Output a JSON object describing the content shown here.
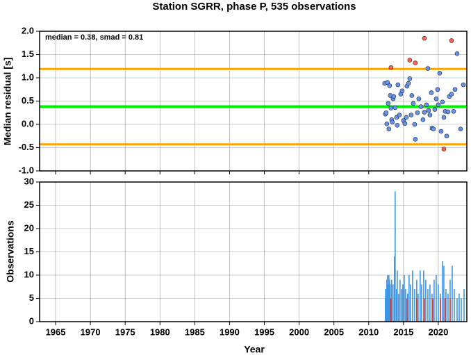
{
  "chart_data": [
    {
      "type": "scatter",
      "title": "Station SGRR, phase P, 535 observations",
      "y_label": "Median residual [s]",
      "annotation": "median = 0.38, smad = 0.81",
      "xlim": [
        1962.7,
        2024.1
      ],
      "xticks": [
        1965,
        1970,
        1975,
        1980,
        1985,
        1990,
        1995,
        2000,
        2005,
        2010,
        2015,
        2020
      ],
      "ylim": [
        -1,
        2
      ],
      "yticks": [
        {
          "value": 2,
          "label": "2.0"
        },
        {
          "value": 1.5,
          "label": "1.5"
        },
        {
          "value": 1,
          "label": "1.0"
        },
        {
          "value": 0.5,
          "label": "0.5"
        },
        {
          "value": 0,
          "label": "0.0"
        },
        {
          "value": -0.5,
          "label": "-0.5"
        },
        {
          "value": -1,
          "label": "-1.0"
        }
      ],
      "grid": true,
      "reference_lines": [
        {
          "value": 1.19,
          "color": "#ffa500"
        },
        {
          "value": 0.38,
          "color": "#00ee00"
        },
        {
          "value": -0.43,
          "color": "#ffa500"
        }
      ],
      "series": [
        {
          "color": "#6495ed",
          "x": [
            2012.3,
            2012.4,
            2012.5,
            2012.6,
            2012.7,
            2012.8,
            2012.9,
            2013.0,
            2013.1,
            2013.2,
            2013.3,
            2013.4,
            2013.5,
            2013.6,
            2013.8,
            2014.0,
            2014.1,
            2014.2,
            2014.4,
            2014.6,
            2014.8,
            2015.0,
            2015.2,
            2015.4,
            2015.5,
            2015.7,
            2015.9,
            2016.1,
            2016.2,
            2016.4,
            2016.6,
            2016.7,
            2017.0,
            2017.2,
            2017.5,
            2017.8,
            2018.0,
            2018.3,
            2018.5,
            2018.6,
            2018.8,
            2019.0,
            2019.1,
            2019.3,
            2019.5,
            2019.7,
            2019.9,
            2020.0,
            2020.2,
            2020.4,
            2020.6,
            2020.8,
            2021.0,
            2021.2,
            2021.4,
            2021.6,
            2021.9,
            2022.2,
            2022.4,
            2022.7,
            2023.2,
            2023.6
          ],
          "values": [
            0.88,
            0.22,
            0.25,
            0.01,
            0.9,
            0.45,
            -0.1,
            0.83,
            0.62,
            0.35,
            0.1,
            0.05,
            0.55,
            0.6,
            0.36,
            0.15,
            -0.02,
            0.85,
            0.2,
            0.65,
            0.72,
            0.08,
            0.02,
            0.15,
            0.82,
            0.88,
            0.98,
            0.2,
            0.62,
            0.45,
            0.0,
            -0.32,
            0.25,
            0.55,
            0.38,
            0.1,
            0.26,
            0.42,
            1.2,
            0.3,
            0.2,
            0.68,
            -0.08,
            -0.1,
            0.32,
            0.55,
            0.75,
            0.42,
            1.1,
            -0.15,
            0.48,
            0.15,
            0.28,
            -0.25,
            0.27,
            0.6,
            0.65,
            0.28,
            0.75,
            1.52,
            -0.1,
            0.85
          ]
        },
        {
          "color": "#ff6347",
          "x": [
            2013.2,
            2015.9,
            2016.7,
            2018.0,
            2021.9,
            2020.8
          ],
          "values": [
            1.22,
            1.38,
            1.32,
            1.85,
            1.8,
            -0.53
          ]
        }
      ]
    },
    {
      "type": "bar",
      "y_label": "Observations",
      "x_label": "Year",
      "xlim": [
        1962.7,
        2024.1
      ],
      "xticks": [
        1965,
        1970,
        1975,
        1980,
        1985,
        1990,
        1995,
        2000,
        2005,
        2010,
        2015,
        2020
      ],
      "ylim": [
        0,
        30
      ],
      "yticks": [
        0,
        5,
        10,
        15,
        20,
        25,
        30
      ],
      "grid": true,
      "series": [
        {
          "color": "#3c96e6",
          "x": [
            2012.4,
            2012.5,
            2012.6,
            2012.7,
            2012.8,
            2012.9,
            2013.0,
            2013.1,
            2013.3,
            2013.5,
            2013.7,
            2013.8,
            2014.0,
            2014.1,
            2014.3,
            2014.5,
            2014.7,
            2014.9,
            2015.1,
            2015.3,
            2015.6,
            2015.8,
            2016.0,
            2016.3,
            2016.6,
            2016.9,
            2017.1,
            2017.4,
            2017.6,
            2017.9,
            2018.2,
            2018.5,
            2018.8,
            2019.1,
            2019.4,
            2019.7,
            2020.0,
            2020.3,
            2020.6,
            2020.8,
            2021.1,
            2021.4,
            2021.7,
            2022.0,
            2022.3,
            2022.7,
            2023.0,
            2023.3,
            2023.7
          ],
          "values": [
            7,
            5,
            9,
            10,
            8,
            10,
            9,
            8,
            9,
            8,
            14,
            28,
            7,
            11,
            6,
            9,
            7,
            8,
            10,
            7,
            6,
            10,
            8,
            11,
            7,
            9,
            6,
            11,
            8,
            11,
            9,
            7,
            8,
            6,
            9,
            10,
            8,
            6,
            13,
            12,
            7,
            6,
            9,
            12,
            7,
            5,
            6,
            5,
            7
          ]
        },
        {
          "color": "#e03030",
          "x": [
            2013.2,
            2015.5,
            2016.9,
            2018.0,
            2019.2,
            2020.3,
            2021.0,
            2021.7
          ],
          "values": [
            5,
            5,
            5,
            5,
            5,
            5,
            5,
            5
          ]
        }
      ]
    }
  ]
}
